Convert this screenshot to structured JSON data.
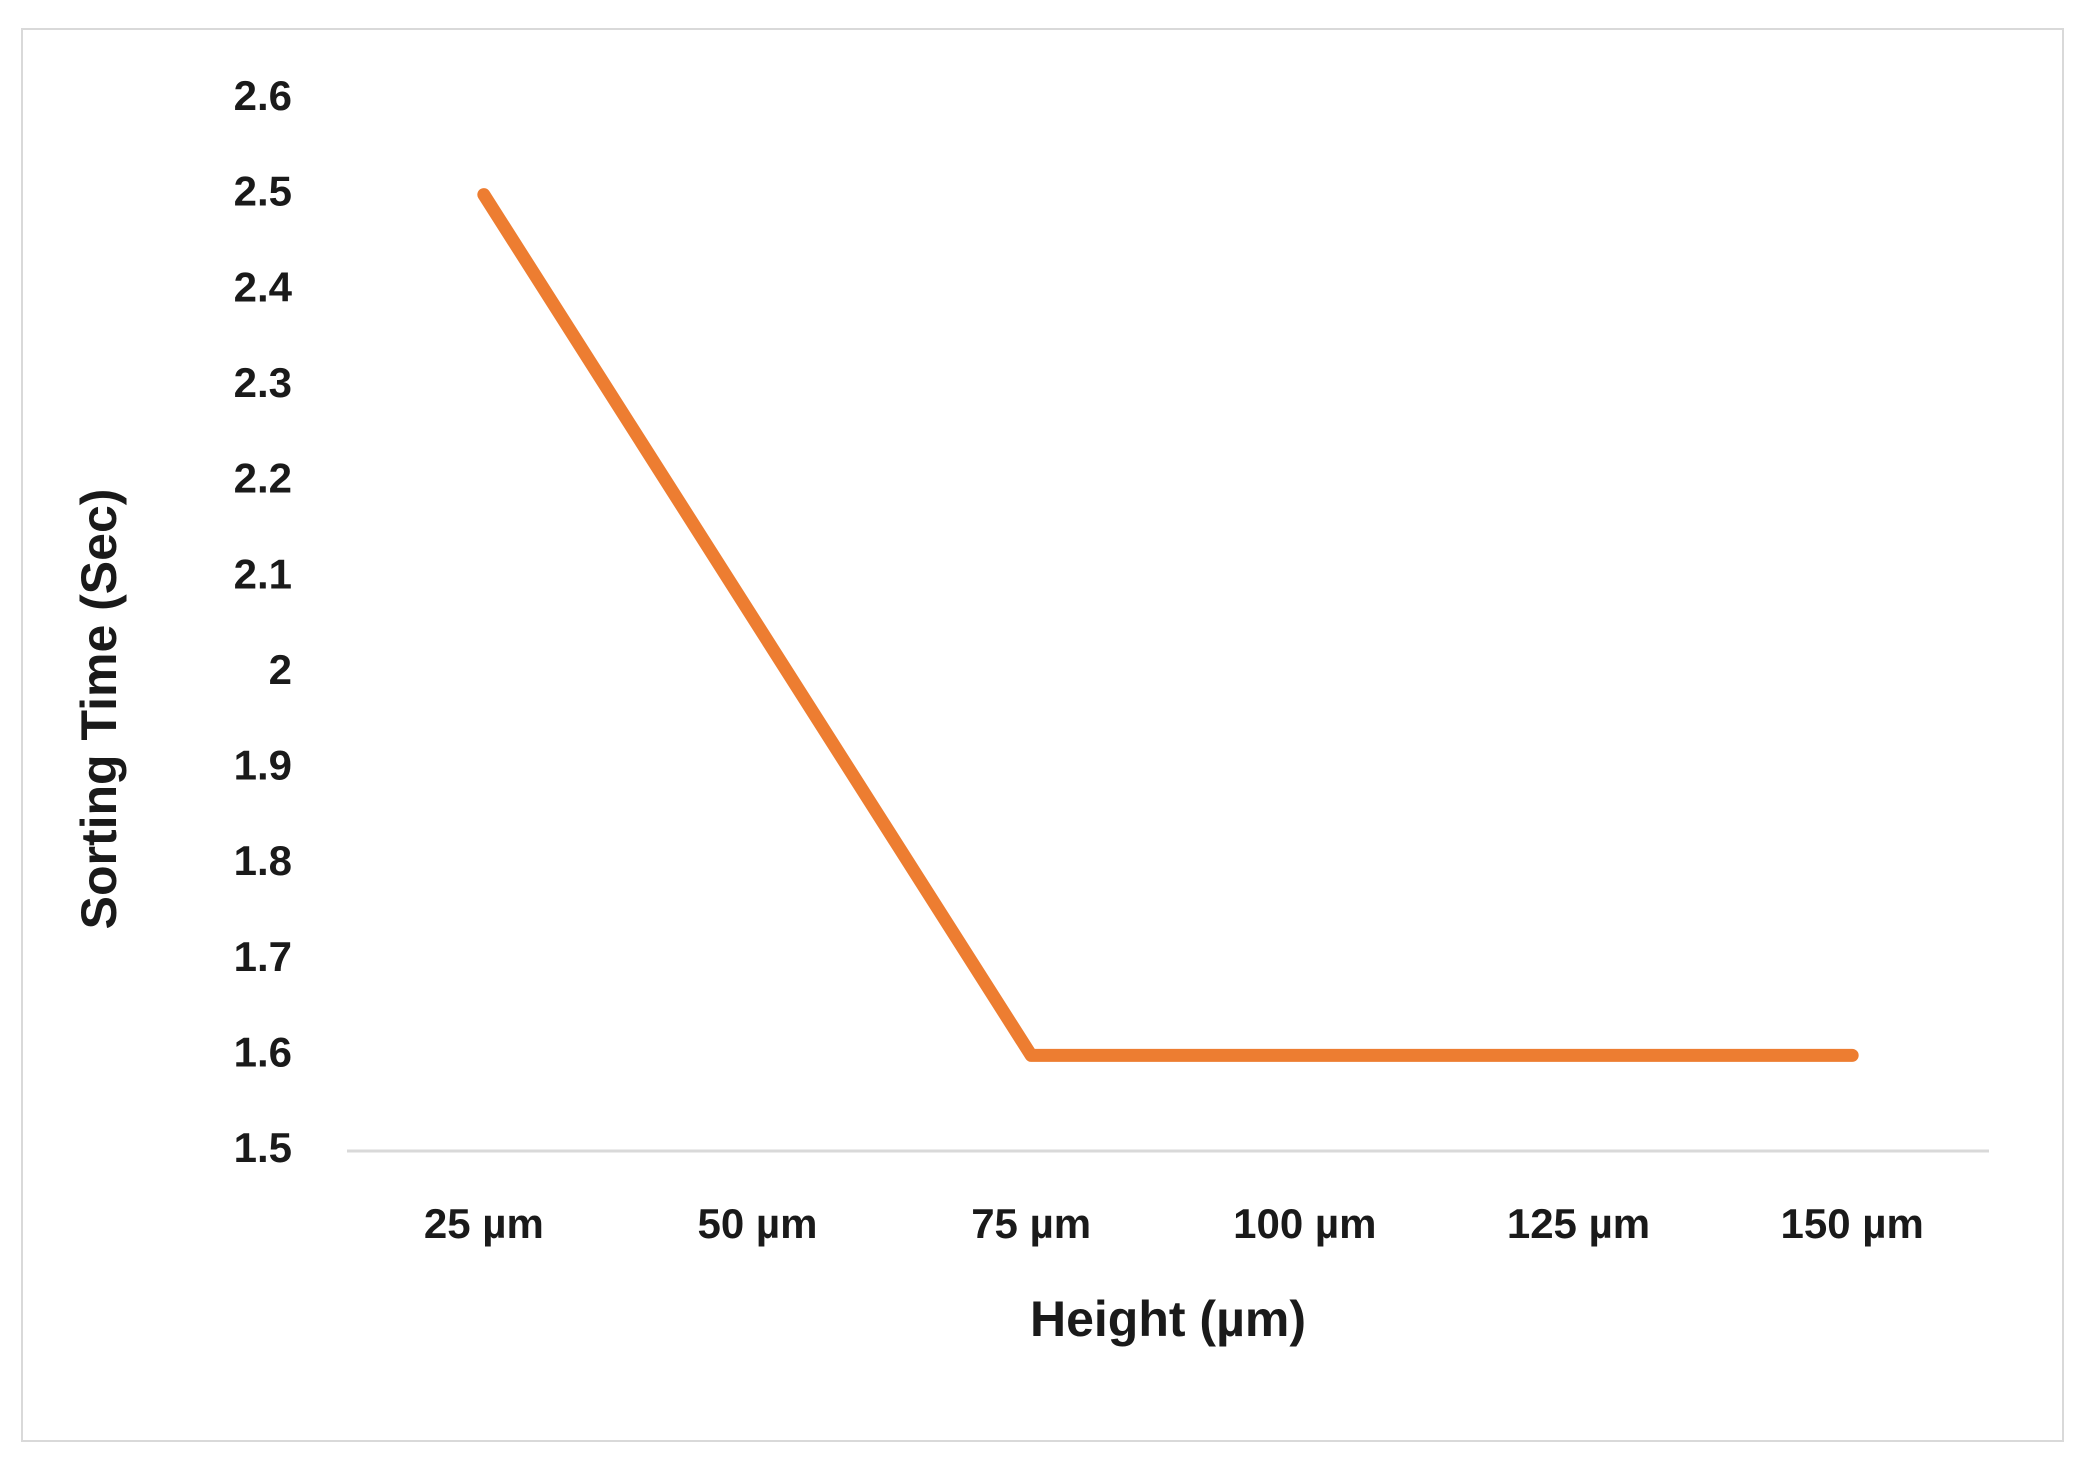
{
  "chart_data": {
    "type": "line",
    "x_label": "Height (µm)",
    "y_label": "Sorting Time (Sec)",
    "categories": [
      "25 µm",
      "50 µm",
      "75 µm",
      "100 µm",
      "125 µm",
      "150 µm"
    ],
    "series": [
      {
        "name": "Sorting Time",
        "color": "#ed7d31",
        "values": [
          2.5,
          2.05,
          1.6,
          1.6,
          1.6,
          1.6
        ]
      }
    ],
    "ylim": [
      1.5,
      2.6
    ],
    "yticks": [
      1.5,
      1.6,
      1.7,
      1.8,
      1.9,
      2,
      2.1,
      2.2,
      2.3,
      2.4,
      2.5,
      2.6
    ],
    "grid": false
  }
}
